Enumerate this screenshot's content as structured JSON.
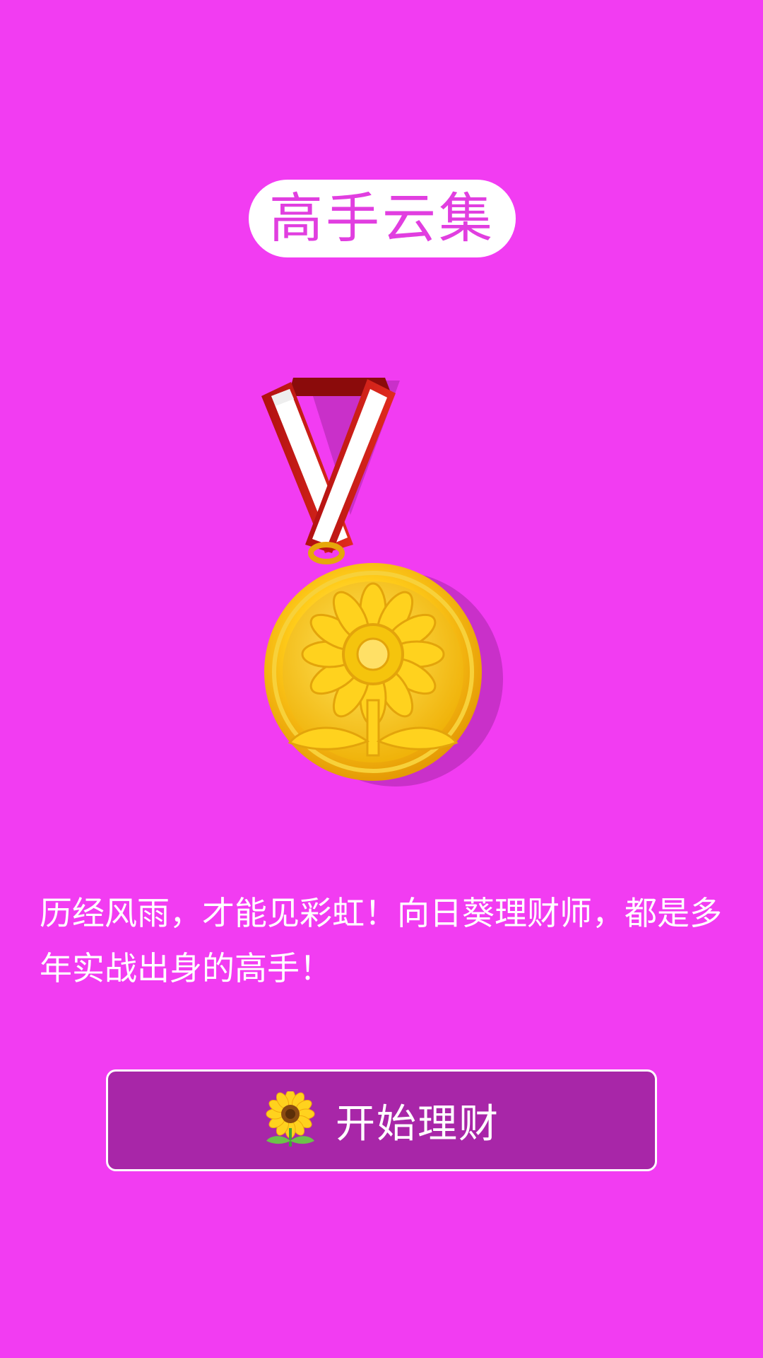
{
  "header": {
    "title": "高手云集"
  },
  "hero": {
    "icon": "sunflower-gold-medal-icon"
  },
  "message": {
    "text": "历经风雨，才能见彩虹！向日葵理财师，都是多年实战出身的高手！"
  },
  "cta": {
    "label": "开始理财",
    "icon": "sunflower-icon"
  },
  "colors": {
    "background": "#f23cf2",
    "title_pill": "#ffffff",
    "title_text": "#e13ee0",
    "button_background": "#a826a8",
    "button_border": "#ffffff",
    "text": "#ffffff"
  }
}
